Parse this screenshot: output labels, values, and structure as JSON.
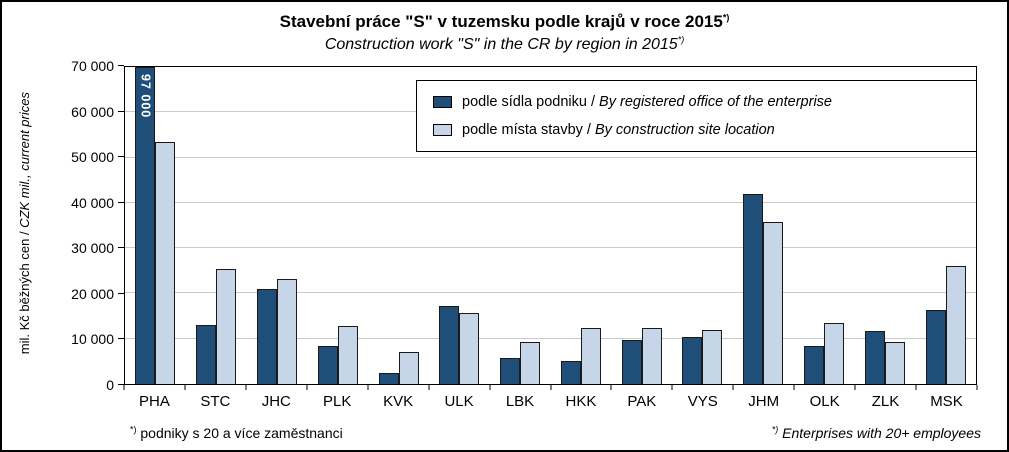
{
  "title": "Stavební práce \"S\" v tuzemsku podle krajů v roce 2015",
  "title_sup": "*)",
  "subtitle": "Construction work \"S\" in the CR by region in 2015",
  "subtitle_sup": "*)",
  "y_axis_label_cs": "mil. Kč běžných cen / ",
  "y_axis_label_en": "CZK mil., current prices",
  "footnote_left_sup": "*)",
  "footnote_left_text": " podniky s 20 a více zaměstnanci",
  "footnote_right_sup": "*)",
  "footnote_right_text": " Enterprises with 20+ employees",
  "legend": {
    "items": [
      {
        "label_cs": "podle sídla podniku / ",
        "label_en": "By registered office of the enterprise",
        "color": "#1f4e79"
      },
      {
        "label_cs": "podle místa stavby / ",
        "label_en": "By construction site location",
        "color": "#c6d5e8"
      }
    ]
  },
  "chart_data": {
    "type": "bar",
    "title": "Stavební práce \"S\" v tuzemsku podle krajů v roce 2015 / Construction work \"S\" in the CR by region in 2015",
    "xlabel": "",
    "ylabel": "mil. Kč běžných cen / CZK mil., current prices",
    "ylim": [
      0,
      70000
    ],
    "ytick_values": [
      0,
      10000,
      20000,
      30000,
      40000,
      50000,
      60000,
      70000
    ],
    "yticks": [
      "0",
      "10 000",
      "20 000",
      "30 000",
      "40 000",
      "50 000",
      "60 000",
      "70 000"
    ],
    "grid": true,
    "legend_position": "top-inside",
    "categories": [
      "PHA",
      "STC",
      "JHC",
      "PLK",
      "KVK",
      "ULK",
      "LBK",
      "HKK",
      "PAK",
      "VYS",
      "JHM",
      "OLK",
      "ZLK",
      "MSK"
    ],
    "series": [
      {
        "name": "podle sídla podniku / By registered office of the enterprise",
        "color": "#1f4e79",
        "values": [
          97000,
          13000,
          21000,
          8500,
          2500,
          17200,
          5800,
          5100,
          9800,
          10400,
          42000,
          8500,
          11800,
          16300
        ]
      },
      {
        "name": "podle místa stavby / By construction site location",
        "color": "#c6d5e8",
        "values": [
          53400,
          25500,
          23200,
          12800,
          7000,
          15600,
          9200,
          12300,
          12300,
          12000,
          35800,
          13400,
          9200,
          26100
        ]
      }
    ],
    "clipped_label": {
      "category": "PHA",
      "series": 0,
      "text": "97 000"
    }
  }
}
